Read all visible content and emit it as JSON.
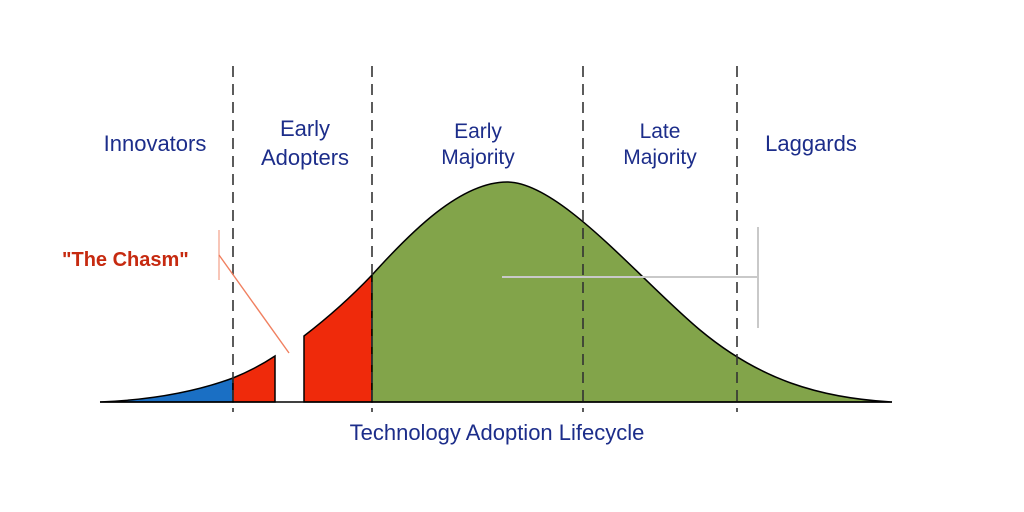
{
  "diagram": {
    "title": "Technology Adoption Lifecycle",
    "chasm_label": "\"The Chasm\"",
    "segments": [
      {
        "id": "innovators",
        "lines": [
          "Innovators"
        ],
        "fill": "#1a6fc4"
      },
      {
        "id": "early-adopters",
        "lines": [
          "Early",
          "Adopters"
        ],
        "fill": "#ef2a0b"
      },
      {
        "id": "early-majority",
        "lines": [
          "Early",
          "Majority"
        ],
        "fill": "#82a44a"
      },
      {
        "id": "late-majority",
        "lines": [
          "Late",
          "Majority"
        ],
        "fill": "#82a44a"
      },
      {
        "id": "laggards",
        "lines": [
          "Laggards"
        ],
        "fill": "#82a44a"
      }
    ],
    "colors": {
      "label_text": "#1c2d8a",
      "chasm_text": "#c62a10",
      "chasm_pointer": "#f08060",
      "curve_outline": "#000000",
      "divider": "#333333",
      "background": "#ffffff"
    }
  }
}
